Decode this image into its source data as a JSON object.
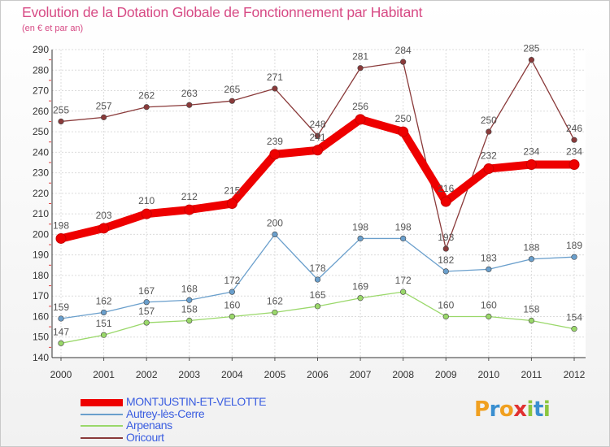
{
  "header": {
    "title": "Evolution de la Dotation Globale de Fonctionnement par Habitant",
    "subtitle": "(en € et par an)"
  },
  "brand": {
    "logo_text": "Proxiti"
  },
  "chart_data": {
    "type": "line",
    "title": "Evolution de la Dotation Globale de Fonctionnement par Habitant",
    "subtitle": "(en € et par an)",
    "xlabel": "",
    "ylabel": "",
    "x": [
      "2000",
      "2001",
      "2002",
      "2003",
      "2004",
      "2005",
      "2006",
      "2007",
      "2008",
      "2009",
      "2010",
      "2011",
      "2012"
    ],
    "ylim": [
      140,
      290
    ],
    "yticks": [
      140,
      150,
      160,
      170,
      180,
      190,
      200,
      210,
      220,
      230,
      240,
      250,
      260,
      270,
      280,
      290
    ],
    "grid": true,
    "legend_position": "bottom-left",
    "series": [
      {
        "name": "MONTJUSTIN-ET-VELOTTE",
        "color": "#ee0000",
        "values": [
          198,
          203,
          210,
          212,
          215,
          239,
          241,
          256,
          250,
          216,
          232,
          234,
          234
        ]
      },
      {
        "name": "Autrey-lès-Cerre",
        "color": "#6a9fcc",
        "values": [
          159,
          162,
          167,
          168,
          172,
          200,
          178,
          198,
          198,
          182,
          183,
          188,
          189
        ]
      },
      {
        "name": "Arpenans",
        "color": "#9ad86a",
        "values": [
          147,
          151,
          157,
          158,
          160,
          162,
          165,
          169,
          172,
          160,
          160,
          158,
          154
        ]
      },
      {
        "name": "Oricourt",
        "color": "#8a3a3a",
        "values": [
          255,
          257,
          262,
          263,
          265,
          271,
          248,
          281,
          284,
          193,
          250,
          285,
          246
        ]
      }
    ]
  }
}
